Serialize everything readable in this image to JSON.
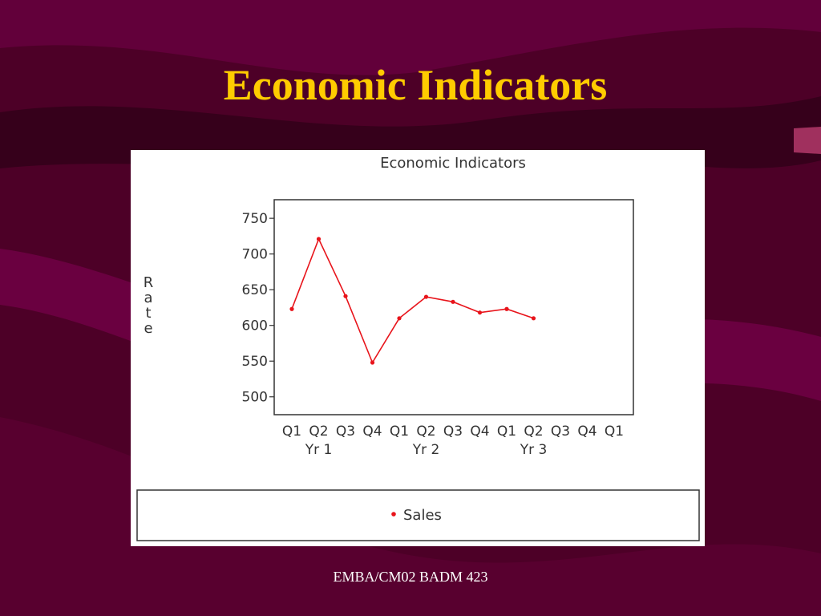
{
  "slide_title": "Economic Indicators",
  "footer": "EMBA/CM02 BADM 423",
  "chart_data": {
    "type": "line",
    "title": "Economic Indicators",
    "y_label": "Rate",
    "categories": [
      "Q1",
      "Q2",
      "Q3",
      "Q4",
      "Q1",
      "Q2",
      "Q3",
      "Q4",
      "Q1",
      "Q2",
      "Q3",
      "Q4",
      "Q1"
    ],
    "x_group_labels": [
      "Yr 1",
      "Yr 2",
      "Yr 3"
    ],
    "series": [
      {
        "name": "Sales",
        "color": "#e8141b",
        "values": [
          623,
          721,
          641,
          548,
          610,
          640,
          633,
          618,
          623,
          610,
          null,
          null,
          null
        ]
      }
    ],
    "ylim": [
      475,
      776
    ],
    "yticks": [
      500,
      550,
      600,
      650,
      700,
      750
    ],
    "legend": "bottom"
  }
}
